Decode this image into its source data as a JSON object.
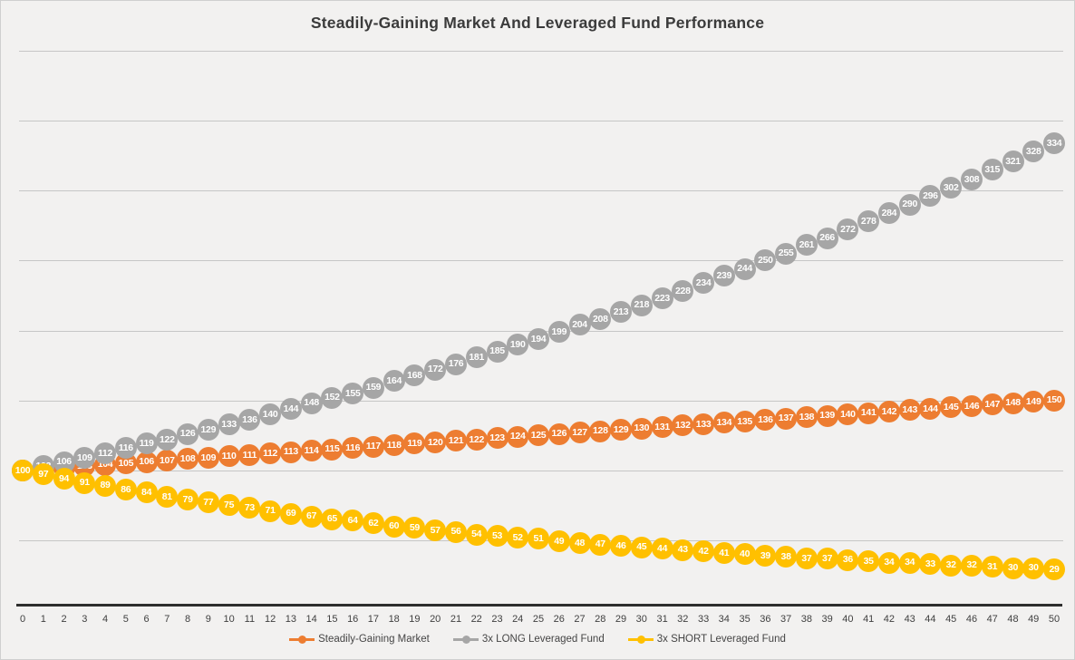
{
  "title": "Steadily-Gaining Market And Leveraged Fund Performance",
  "chart_data": {
    "type": "line",
    "x": [
      0,
      1,
      2,
      3,
      4,
      5,
      6,
      7,
      8,
      9,
      10,
      11,
      12,
      13,
      14,
      15,
      16,
      17,
      18,
      19,
      20,
      21,
      22,
      23,
      24,
      25,
      26,
      27,
      28,
      29,
      30,
      31,
      32,
      33,
      34,
      35,
      36,
      37,
      38,
      39,
      40,
      41,
      42,
      43,
      44,
      45,
      46,
      47,
      48,
      49,
      50
    ],
    "series": [
      {
        "name": "Steadily-Gaining Market",
        "color": "#ED7D31",
        "values": [
          100,
          101,
          102,
          103,
          104,
          105,
          106,
          107,
          108,
          109,
          110,
          111,
          112,
          113,
          114,
          115,
          116,
          117,
          118,
          119,
          120,
          121,
          122,
          123,
          124,
          125,
          126,
          127,
          128,
          129,
          130,
          131,
          132,
          133,
          134,
          135,
          136,
          137,
          138,
          139,
          140,
          141,
          142,
          143,
          144,
          145,
          146,
          147,
          148,
          149,
          150
        ]
      },
      {
        "name": "3x LONG Leveraged Fund",
        "color": "#A6A6A6",
        "values": [
          100,
          103,
          106,
          109,
          112,
          116,
          119,
          122,
          126,
          129,
          133,
          136,
          140,
          144,
          148,
          152,
          155,
          159,
          164,
          168,
          172,
          176,
          181,
          185,
          190,
          194,
          199,
          204,
          208,
          213,
          218,
          223,
          228,
          234,
          239,
          244,
          250,
          255,
          261,
          266,
          272,
          278,
          284,
          290,
          296,
          302,
          308,
          315,
          321,
          328,
          334
        ]
      },
      {
        "name": "3x SHORT Leveraged Fund",
        "color": "#FFC000",
        "values": [
          100,
          97,
          94,
          91,
          89,
          86,
          84,
          81,
          79,
          77,
          75,
          73,
          71,
          69,
          67,
          65,
          64,
          62,
          60,
          59,
          57,
          56,
          54,
          53,
          52,
          51,
          49,
          48,
          47,
          46,
          45,
          44,
          43,
          42,
          41,
          40,
          39,
          38,
          37,
          37,
          36,
          35,
          34,
          34,
          33,
          32,
          32,
          31,
          30,
          30,
          29
        ]
      }
    ],
    "title": "Steadily-Gaining Market And Leveraged Fund Performance",
    "xlabel": "",
    "ylabel": "",
    "ylim": [
      0,
      400
    ],
    "gridline_interval": 50,
    "grid": true,
    "y_axis_labels_visible": false,
    "marker_data_labels": true,
    "legend_position": "bottom"
  },
  "colors": {
    "background": "#f2f1f0",
    "border": "#cfcfcf",
    "gridline": "#c6c6c6",
    "axis_line": "#2e2e2e",
    "title_text": "#3b3b3b",
    "tick_text": "#3f3f3f",
    "marker_label_text": "#ffffff"
  }
}
